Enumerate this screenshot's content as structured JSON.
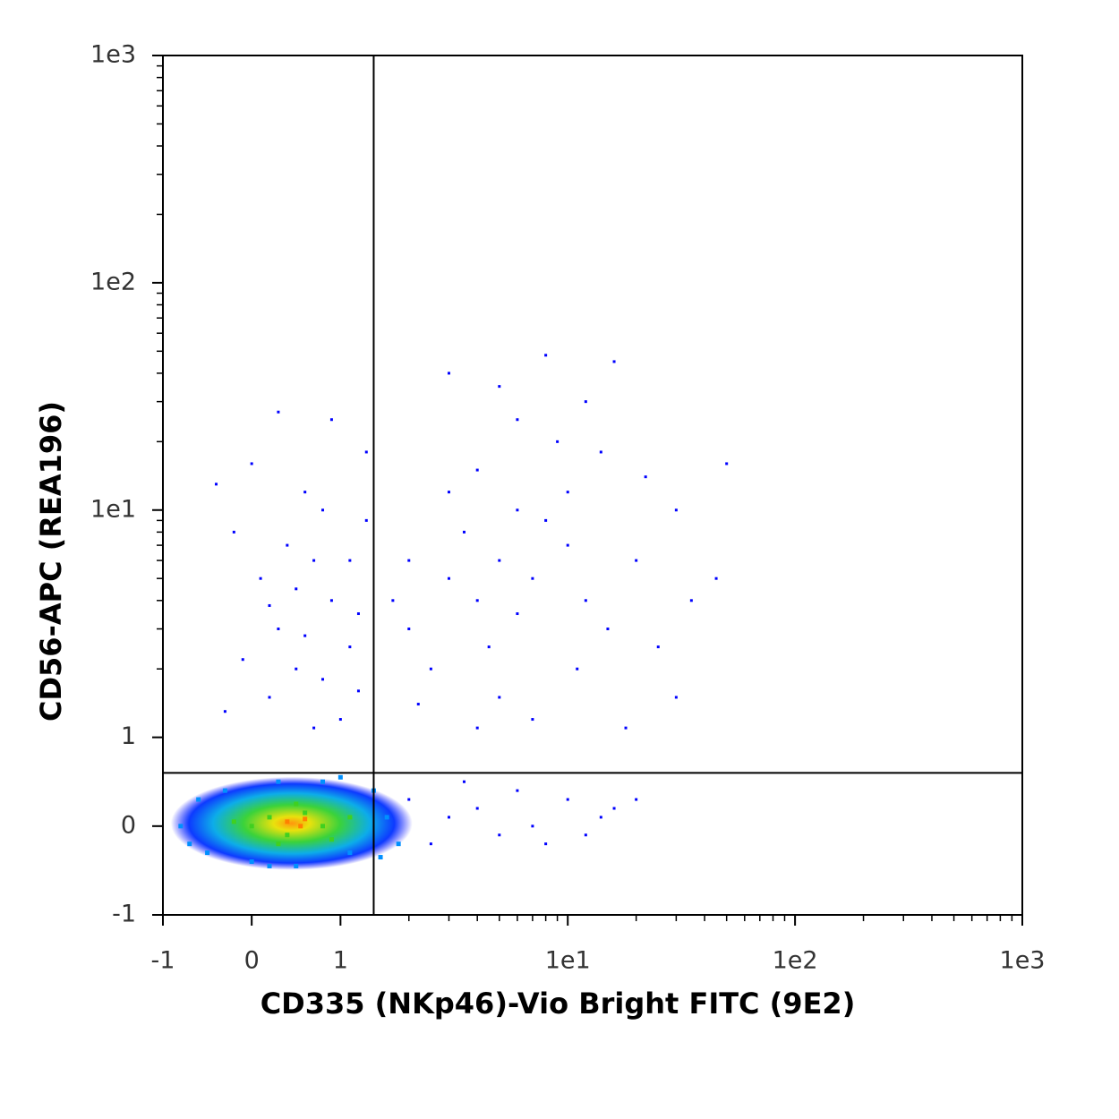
{
  "chart_data": {
    "type": "scatter",
    "x_label": "CD335 (NKp46)-Vio Bright FITC (9E2)",
    "y_label": "CD56-APC (REA196)",
    "xscale": "biexponential",
    "yscale": "biexponential",
    "xlim": [
      -1,
      1000
    ],
    "ylim": [
      -1,
      1000
    ],
    "xticks": [
      -1,
      0,
      1,
      {
        "value": 10,
        "label": "1e1"
      },
      {
        "value": 100,
        "label": "1e2"
      },
      {
        "value": 1000,
        "label": "1e3"
      }
    ],
    "yticks": [
      -1,
      0,
      1,
      {
        "value": 10,
        "label": "1e1"
      },
      {
        "value": 100,
        "label": "1e2"
      },
      {
        "value": 1000,
        "label": "1e3"
      }
    ],
    "minor_ticks": [
      2,
      3,
      4,
      5,
      6,
      7,
      8,
      9,
      20,
      30,
      40,
      50,
      60,
      70,
      80,
      90,
      200,
      300,
      400,
      500,
      600,
      700,
      800,
      900
    ],
    "gates": {
      "x": 1.4,
      "y": 0.6
    },
    "series": [
      {
        "color": "#0000ff",
        "x": [
          -0.4,
          -0.2,
          0.1,
          0.3,
          0.5,
          0.7,
          0.9,
          1.1,
          1.3,
          0.6,
          0.2,
          0.8,
          1.0,
          1.2,
          0.4,
          -0.1,
          0.0,
          0.3,
          0.9,
          1.3,
          0.7,
          0.5,
          1.1,
          0.8,
          -0.3,
          0.2,
          1.2,
          0.6,
          2,
          3,
          4,
          5,
          6,
          3.5,
          2.5,
          4.5,
          7,
          8,
          10,
          12,
          15,
          20,
          25,
          9,
          12,
          16,
          8,
          6,
          4,
          3,
          2,
          1.7,
          5,
          7,
          11,
          18,
          30,
          35,
          45,
          30,
          22,
          14,
          5,
          3,
          50,
          2.2,
          4,
          6,
          10,
          2,
          3,
          4,
          5,
          6,
          8,
          10,
          14,
          20,
          12,
          2.5,
          3.5,
          7,
          16
        ],
        "y": [
          13,
          8,
          5,
          3,
          2,
          6,
          4,
          2.5,
          9,
          12,
          1.5,
          1.8,
          1.2,
          3.5,
          7,
          2.2,
          16,
          27,
          25,
          18,
          1.1,
          4.5,
          6,
          10,
          1.3,
          3.8,
          1.6,
          2.8,
          3,
          5,
          4,
          6,
          3.5,
          8,
          2,
          2.5,
          5,
          9,
          7,
          4,
          3,
          6,
          2.5,
          20,
          30,
          45,
          48,
          25,
          15,
          12,
          6,
          4,
          1.5,
          1.2,
          2,
          1.1,
          1.5,
          4,
          5,
          10,
          14,
          18,
          35,
          40,
          16,
          1.4,
          1.1,
          10,
          12,
          0.3,
          0.1,
          0.2,
          -0.1,
          0.4,
          -0.2,
          0.3,
          0.1,
          0.3,
          -0.1,
          -0.2,
          0.5,
          0.0,
          0.2
        ]
      },
      {
        "color": "#0090ff",
        "x": [
          -0.8,
          -0.6,
          -0.5,
          -0.3,
          0,
          0.3,
          0.5,
          0.8,
          1.1,
          1.4,
          1.6,
          1.8,
          1.5,
          -0.7,
          0.2,
          1.0
        ],
        "y": [
          0.0,
          0.3,
          -0.3,
          0.4,
          -0.4,
          0.5,
          -0.45,
          0.5,
          -0.3,
          0.4,
          0.1,
          -0.2,
          -0.35,
          -0.2,
          -0.45,
          0.55
        ]
      },
      {
        "color": "#40d020",
        "x": [
          0,
          0.2,
          0.4,
          0.6,
          0.8,
          -0.2,
          0.5,
          0.3,
          0.9,
          1.1
        ],
        "y": [
          0,
          0.1,
          -0.1,
          0.15,
          0,
          0.05,
          0.25,
          -0.2,
          -0.15,
          0.1
        ]
      },
      {
        "color": "#ff8000",
        "x": [
          0.4,
          0.55,
          0.6
        ],
        "y": [
          0.05,
          0.0,
          0.08
        ]
      }
    ]
  }
}
